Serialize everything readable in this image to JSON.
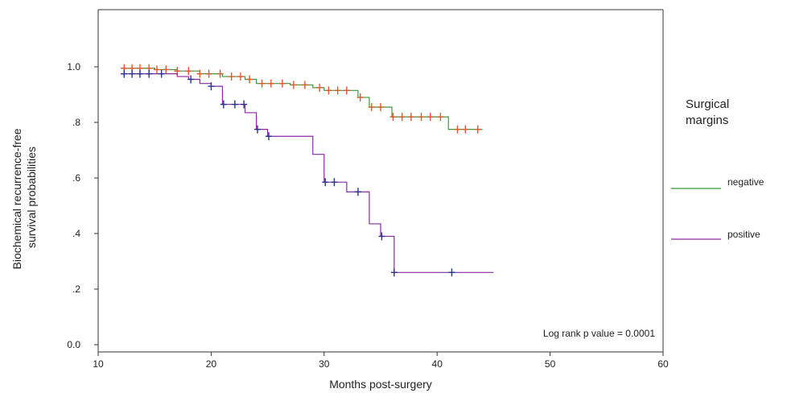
{
  "chart_data": {
    "type": "line",
    "subtype": "kaplan-meier step plot",
    "title": "",
    "xlabel": "Months post-surgery",
    "ylabel": "Biochemical recurrence-free survival probabilities",
    "xlim": [
      10,
      60
    ],
    "ylim": [
      0,
      1.2
    ],
    "xticks": [
      10,
      20,
      30,
      40,
      50,
      60
    ],
    "xtick_labels": [
      "10",
      "20",
      "30",
      "40",
      "50",
      "60"
    ],
    "yticks": [
      0,
      0.2,
      0.4,
      0.6,
      0.8,
      1.0
    ],
    "ytick_labels": [
      "0.0",
      ".2",
      ".4",
      ".6",
      ".8",
      "1.0"
    ],
    "grid": false,
    "legend": {
      "title": "Surgical margins",
      "placement": "right"
    },
    "annotation": "Log rank p value = 0.0001",
    "series": [
      {
        "name": "negative",
        "color": "#3a9a3a",
        "censor_color": "#e0582a",
        "steps": [
          [
            12,
            0.995
          ],
          [
            15,
            0.99
          ],
          [
            17,
            0.985
          ],
          [
            19,
            0.975
          ],
          [
            21,
            0.965
          ],
          [
            23,
            0.955
          ],
          [
            24,
            0.94
          ],
          [
            27,
            0.935
          ],
          [
            29,
            0.925
          ],
          [
            30,
            0.915
          ],
          [
            33,
            0.89
          ],
          [
            34,
            0.855
          ],
          [
            36,
            0.82
          ],
          [
            41,
            0.775
          ],
          [
            44,
            0.775
          ]
        ],
        "censored": [
          12.3,
          13,
          13.7,
          14.5,
          15.2,
          16,
          17,
          18,
          19,
          19.8,
          20.8,
          21.8,
          22.6,
          23.4,
          24.5,
          25.3,
          26.3,
          27.3,
          28.3,
          29.6,
          30.4,
          31.2,
          32,
          33.2,
          34.2,
          35,
          36.1,
          36.9,
          37.7,
          38.6,
          39.4,
          40.3,
          41.8,
          42.5,
          43.6
        ]
      },
      {
        "name": "positive",
        "color": "#8a2aa0",
        "censor_color": "#27328a",
        "steps": [
          [
            12,
            0.975
          ],
          [
            17,
            0.965
          ],
          [
            18,
            0.955
          ],
          [
            19,
            0.94
          ],
          [
            20,
            0.93
          ],
          [
            21,
            0.865
          ],
          [
            23,
            0.835
          ],
          [
            24,
            0.775
          ],
          [
            25,
            0.75
          ],
          [
            29,
            0.685
          ],
          [
            30,
            0.585
          ],
          [
            32,
            0.55
          ],
          [
            34,
            0.435
          ],
          [
            35,
            0.39
          ],
          [
            36.2,
            0.26
          ],
          [
            45,
            0.26
          ]
        ],
        "censored": [
          12.3,
          13,
          13.7,
          14.5,
          15.6,
          18.2,
          20,
          21.1,
          22.1,
          22.9,
          24.1,
          25.1,
          30.1,
          30.9,
          33,
          35.1,
          36.2,
          41.3
        ]
      }
    ]
  }
}
